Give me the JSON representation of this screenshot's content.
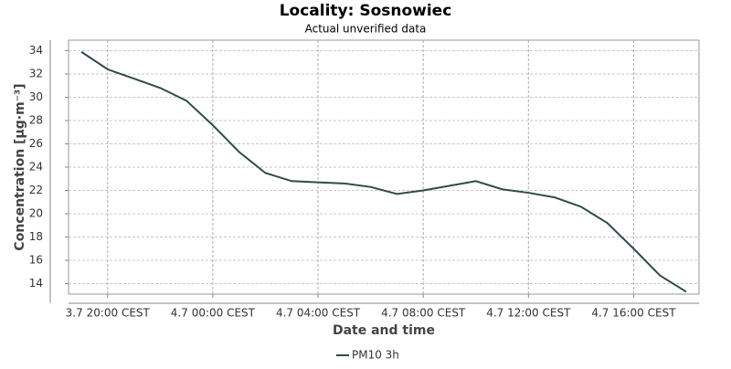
{
  "chart_data": {
    "type": "line",
    "title": "Locality: Sosnowiec",
    "subtitle": "Actual unverified data",
    "x_label": "Date and time",
    "y_label": "Concentration [µg·m⁻³]",
    "x": [
      "3.7 19:00 CEST",
      "3.7 20:00 CEST",
      "3.7 21:00 CEST",
      "3.7 22:00 CEST",
      "3.7 23:00 CEST",
      "4.7 00:00 CEST",
      "4.7 01:00 CEST",
      "4.7 02:00 CEST",
      "4.7 03:00 CEST",
      "4.7 04:00 CEST",
      "4.7 05:00 CEST",
      "4.7 06:00 CEST",
      "4.7 07:00 CEST",
      "4.7 08:00 CEST",
      "4.7 09:00 CEST",
      "4.7 10:00 CEST",
      "4.7 11:00 CEST",
      "4.7 12:00 CEST",
      "4.7 13:00 CEST",
      "4.7 14:00 CEST",
      "4.7 15:00 CEST",
      "4.7 16:00 CEST",
      "4.7 17:00 CEST",
      "4.7 18:00 CEST"
    ],
    "xticks": [
      "3.7 20:00 CEST",
      "4.7 00:00 CEST",
      "4.7 04:00 CEST",
      "4.7 08:00 CEST",
      "4.7 12:00 CEST",
      "4.7 16:00 CEST"
    ],
    "series": [
      {
        "name": "PM10 3h",
        "color": "#2f4b4b",
        "values": [
          33.9,
          32.4,
          31.6,
          30.8,
          29.7,
          27.6,
          25.3,
          23.5,
          22.8,
          22.7,
          22.6,
          22.3,
          21.7,
          22.0,
          22.4,
          22.8,
          22.1,
          21.8,
          21.4,
          20.6,
          19.2,
          17.0,
          14.7,
          13.3
        ]
      }
    ],
    "ylim": [
      13.1,
      34.9
    ],
    "yticks": [
      14,
      16,
      18,
      20,
      22,
      24,
      26,
      28,
      30,
      32,
      34
    ],
    "grid": true,
    "legend": "bottom"
  }
}
